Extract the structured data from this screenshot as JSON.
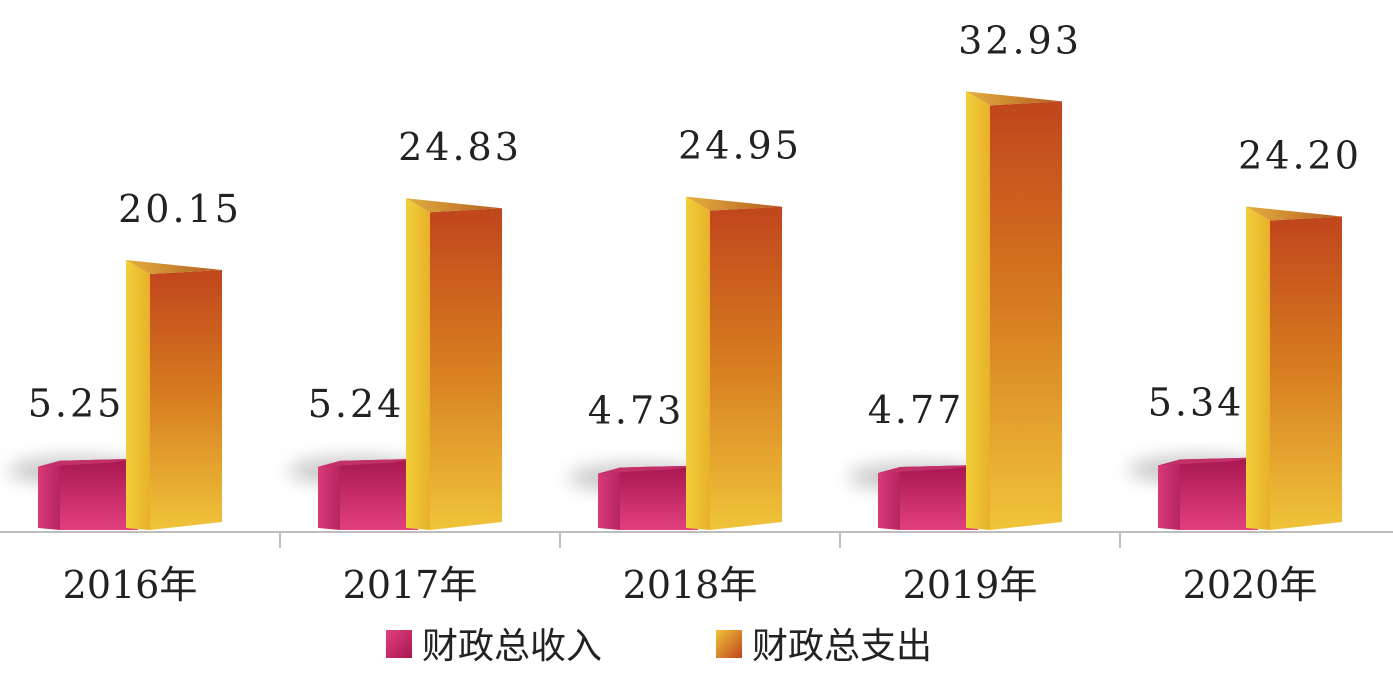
{
  "chart_data": {
    "type": "bar",
    "categories": [
      "2016年",
      "2017年",
      "2018年",
      "2019年",
      "2020年"
    ],
    "series": [
      {
        "name": "财政总收入",
        "values": [
          5.25,
          5.24,
          4.73,
          4.77,
          5.34
        ],
        "labels": [
          "5.25",
          "5.24",
          "4.73",
          "4.77",
          "5.34"
        ],
        "color": "#c8256a"
      },
      {
        "name": "财政总支出",
        "values": [
          20.15,
          24.83,
          24.95,
          32.93,
          24.2
        ],
        "labels": [
          "20.15",
          "24.83",
          "24.95",
          "32.93",
          "24.20"
        ],
        "color": "#e07a1f"
      }
    ],
    "title": "",
    "xlabel": "",
    "ylabel": "",
    "ylim": [
      0,
      35
    ],
    "grid": false,
    "legend": "bottom-center",
    "style": "3d-bar"
  }
}
